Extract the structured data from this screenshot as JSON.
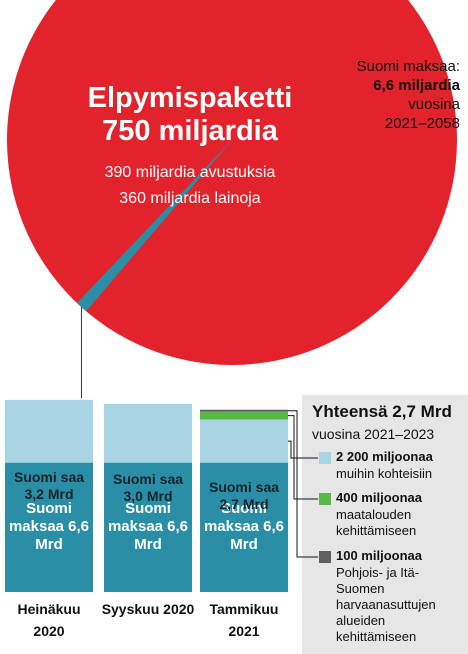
{
  "chart_data": [
    {
      "type": "pie",
      "title": "Elpymispaketti 750 miljardia",
      "total": 750,
      "total_color": "#e3232c",
      "subtitle_lines": [
        "390 miljardia avustuksia",
        "360 miljardia lainoja"
      ],
      "slice": {
        "value": 6.6,
        "color": "#2a8fa6"
      },
      "annotation_lines": [
        "Suomi maksaa:",
        "6,6 miljardia",
        "vuosina",
        "2021–2058"
      ]
    },
    {
      "type": "bar",
      "stacked": true,
      "categories": [
        "Heinäkuu 2020",
        "Syyskuu 2020",
        "Tammikuu 2021"
      ],
      "series": [
        {
          "color": "#2a8fa6",
          "values": [
            6.6,
            6.6,
            6.6
          ],
          "value_labels": [
            "Suomi maksaa 6,6 Mrd",
            "Suomi maksaa 6,6 Mrd",
            "Suomi maksaa 6,6 Mrd"
          ]
        },
        {
          "color": "#a9d4e3",
          "values": [
            3.2,
            3.0,
            2.2
          ]
        },
        {
          "color": "#58b947",
          "values": [
            null,
            null,
            0.4
          ]
        },
        {
          "color": "#5f5f5f",
          "values": [
            null,
            null,
            0.1
          ]
        }
      ],
      "received_labels": [
        {
          "value": 3.2,
          "label": "Suomi saa 3,2 Mrd"
        },
        {
          "value": 3.0,
          "label": "Suomi saa 3,0 Mrd"
        },
        {
          "value": 2.7,
          "label": "Suomi saa 2,7 Mrd"
        }
      ],
      "legend_title": "Yhteensä 2,7 Mrd",
      "legend_subtitle": "vuosina 2021–2023",
      "legend_items": [
        {
          "amount": "2 200 miljoonaa",
          "text": "muihin kohteisiin"
        },
        {
          "amount": "400 miljoonaa",
          "text": "maatalouden kehittämiseen"
        },
        {
          "amount": "100 miljoonaa",
          "text": "Pohjois- ja Itä-Suomen harvaanasuttujen alueiden kehittämiseen"
        }
      ]
    }
  ]
}
